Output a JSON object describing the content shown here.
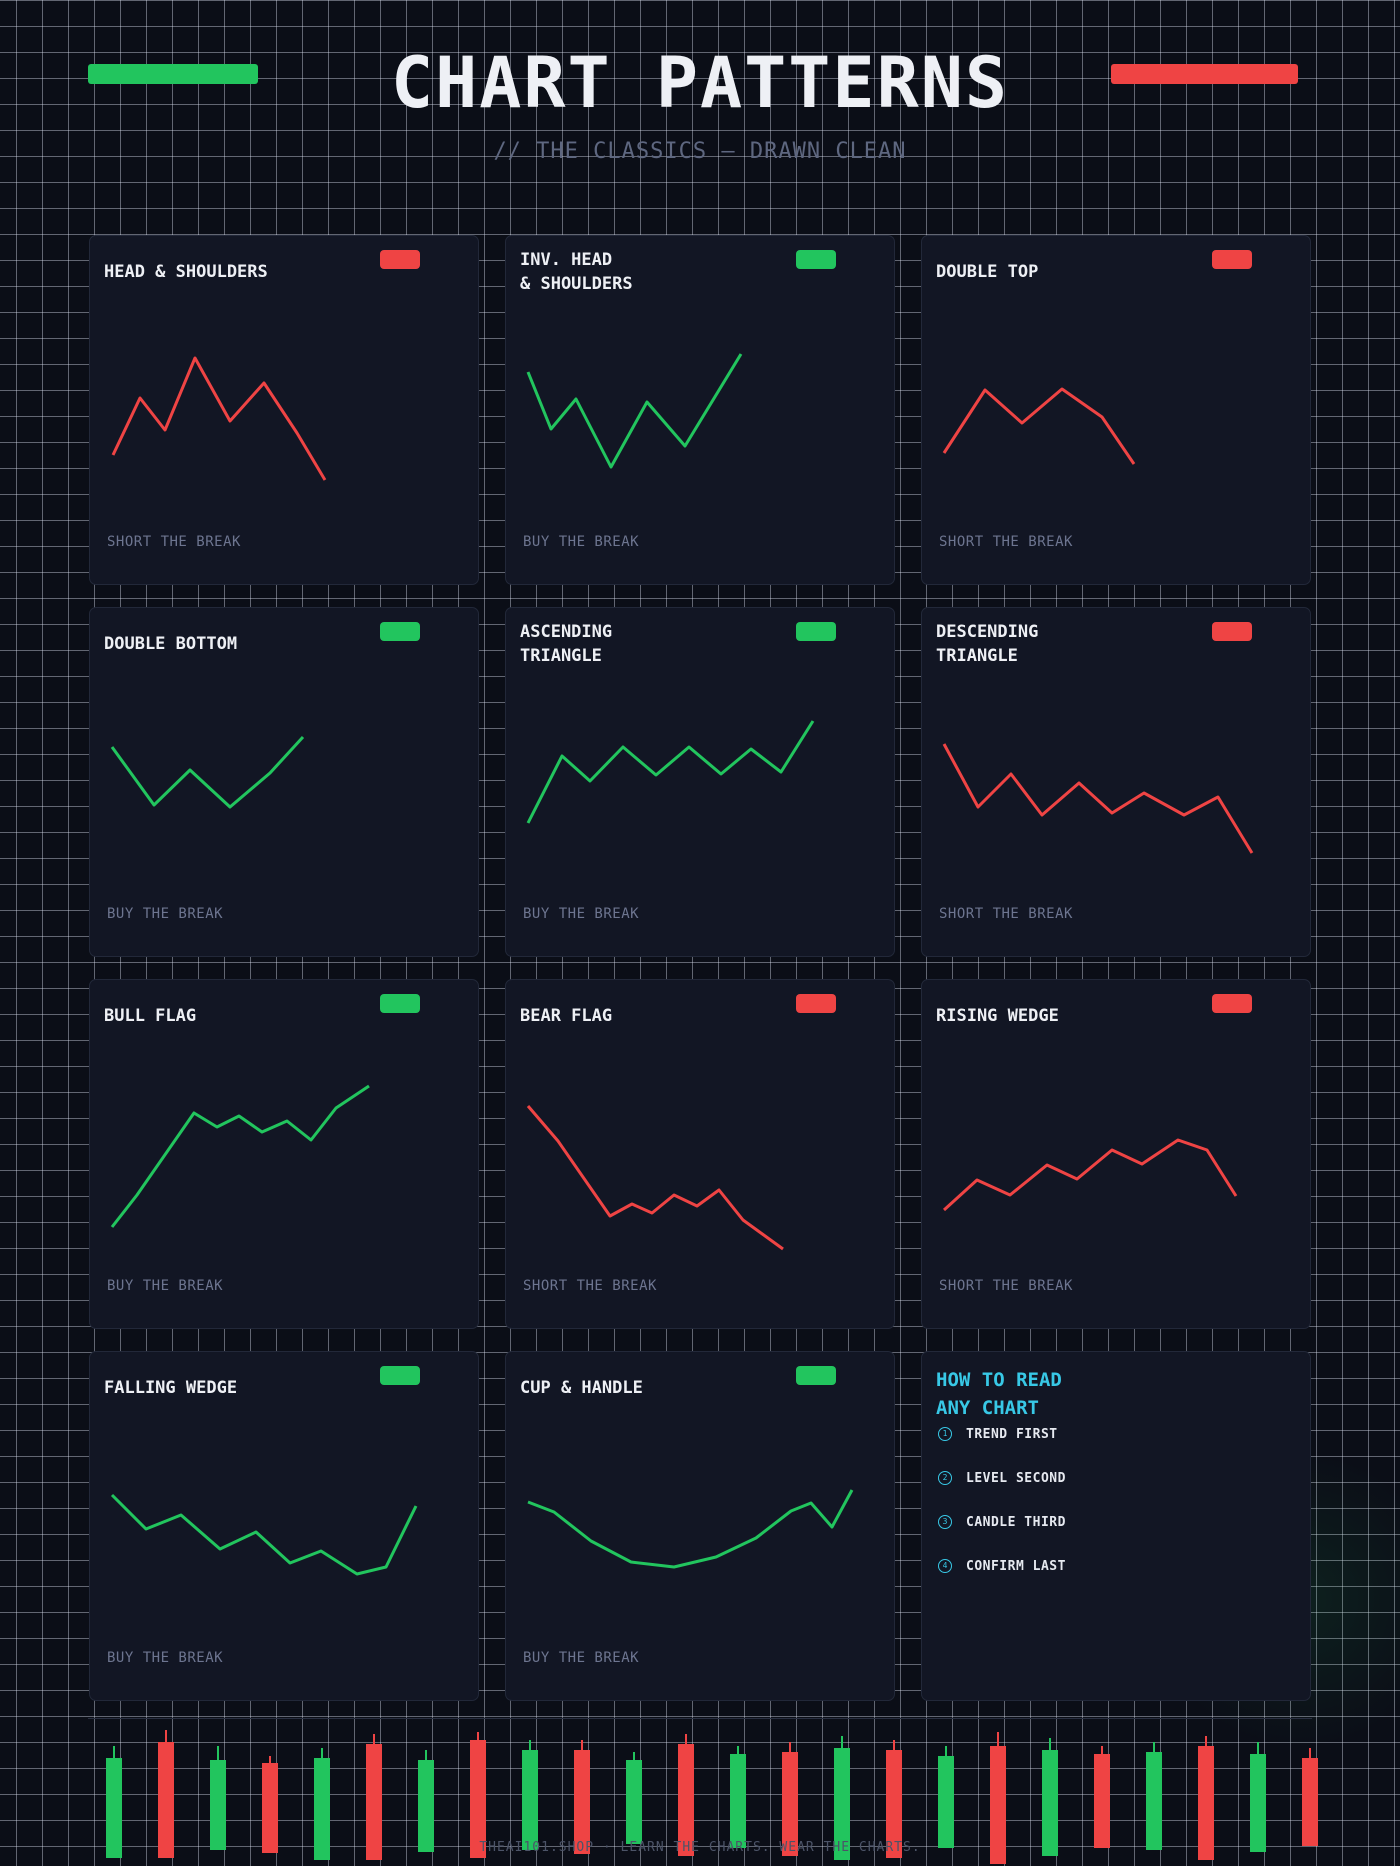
{
  "header": {
    "title": "CHART PATTERNS",
    "subtitle": "// THE CLASSICS — DRAWN CLEAN"
  },
  "colors": {
    "bull": "#22c55e",
    "bear": "#ef4444",
    "accent": "#38c8e6",
    "card_bg": "#121624",
    "page_bg": "#0b0e17"
  },
  "cards": [
    {
      "name": "HEAD & SHOULDERS",
      "action": "SHORT THE BREAK",
      "bias": "bear"
    },
    {
      "name": "INV. HEAD\n& SHOULDERS",
      "action": "BUY THE BREAK",
      "bias": "bull"
    },
    {
      "name": "DOUBLE TOP",
      "action": "SHORT THE BREAK",
      "bias": "bear"
    },
    {
      "name": "DOUBLE BOTTOM",
      "action": "BUY THE BREAK",
      "bias": "bull"
    },
    {
      "name": "ASCENDING\nTRIANGLE",
      "action": "BUY THE BREAK",
      "bias": "bull"
    },
    {
      "name": "DESCENDING\nTRIANGLE",
      "action": "SHORT THE BREAK",
      "bias": "bear"
    },
    {
      "name": "BULL FLAG",
      "action": "BUY THE BREAK",
      "bias": "bull"
    },
    {
      "name": "BEAR FLAG",
      "action": "SHORT THE BREAK",
      "bias": "bear"
    },
    {
      "name": "RISING WEDGE",
      "action": "SHORT THE BREAK",
      "bias": "bear"
    },
    {
      "name": "FALLING WEDGE",
      "action": "BUY THE BREAK",
      "bias": "bull"
    },
    {
      "name": "CUP & HANDLE",
      "action": "BUY THE BREAK",
      "bias": "bull"
    }
  ],
  "howto": {
    "title": "HOW TO READ\nANY CHART",
    "steps": [
      {
        "num": "1",
        "label": "TREND FIRST"
      },
      {
        "num": "2",
        "label": "LEVEL SECOND"
      },
      {
        "num": "3",
        "label": "CANDLE THIRD"
      },
      {
        "num": "4",
        "label": "CONFIRM LAST"
      }
    ]
  },
  "candles": [
    "bull",
    "bear",
    "bull",
    "bear",
    "bull",
    "bear",
    "bull",
    "bear",
    "bull",
    "bear",
    "bull",
    "bear",
    "bull",
    "bear",
    "bull",
    "bear",
    "bull",
    "bear",
    "bull",
    "bear",
    "bull",
    "bear",
    "bull",
    "bear"
  ],
  "footer": "THEAI101.SHOP · LEARN THE CHARTS. WEAR THE CHARTS."
}
